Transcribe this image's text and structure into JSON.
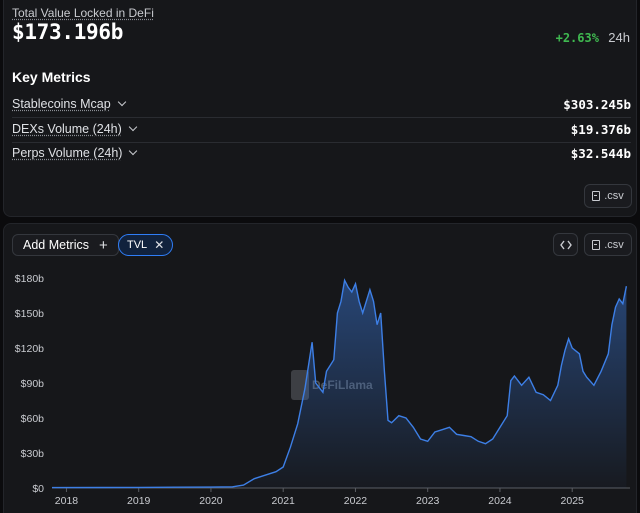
{
  "summary": {
    "tvl_label": "Total Value Locked in DeFi",
    "tvl_value": "$173.196b",
    "change_pct": "+2.63%",
    "change_period": "24h"
  },
  "key_metrics": {
    "title": "Key Metrics",
    "items": [
      {
        "name": "Stablecoins Mcap",
        "value": "$303.245b"
      },
      {
        "name": "DEXs Volume (24h)",
        "value": "$19.376b"
      },
      {
        "name": "Perps Volume (24h)",
        "value": "$32.544b"
      }
    ],
    "csv_label": ".csv"
  },
  "chart_controls": {
    "add_metrics_label": "Add Metrics",
    "add_icon": "plus-icon",
    "chip_label": "TVL",
    "chip_remove_icon": "close-icon",
    "embed_icon": "code-icon",
    "csv_label": ".csv"
  },
  "watermark": "DeFiLlama",
  "colors": {
    "accent": "#2f7df6",
    "positive": "#3fb950",
    "line": "#3d7fe6"
  },
  "chart_data": {
    "type": "area",
    "title": "",
    "xlabel": "",
    "ylabel": "",
    "x_ticks": [
      "2018",
      "2019",
      "2020",
      "2021",
      "2022",
      "2023",
      "2024",
      "2025"
    ],
    "y_ticks": [
      "$0",
      "$30b",
      "$60b",
      "$90b",
      "$120b",
      "$150b",
      "$180b"
    ],
    "ylim": [
      0,
      180
    ],
    "xlim": [
      2017.8,
      2025.8
    ],
    "grid": false,
    "series": [
      {
        "name": "TVL",
        "points": [
          [
            2017.8,
            0.3
          ],
          [
            2018.5,
            0.4
          ],
          [
            2019.0,
            0.5
          ],
          [
            2019.5,
            0.7
          ],
          [
            2020.0,
            0.8
          ],
          [
            2020.3,
            1.0
          ],
          [
            2020.45,
            2.5
          ],
          [
            2020.6,
            8
          ],
          [
            2020.75,
            11
          ],
          [
            2020.9,
            14
          ],
          [
            2021.0,
            18
          ],
          [
            2021.1,
            35
          ],
          [
            2021.2,
            55
          ],
          [
            2021.3,
            85
          ],
          [
            2021.35,
            105
          ],
          [
            2021.4,
            125
          ],
          [
            2021.45,
            90
          ],
          [
            2021.55,
            82
          ],
          [
            2021.6,
            100
          ],
          [
            2021.7,
            110
          ],
          [
            2021.75,
            150
          ],
          [
            2021.8,
            160
          ],
          [
            2021.85,
            178
          ],
          [
            2021.9,
            172
          ],
          [
            2021.95,
            168
          ],
          [
            2022.0,
            175
          ],
          [
            2022.05,
            160
          ],
          [
            2022.1,
            150
          ],
          [
            2022.2,
            170
          ],
          [
            2022.25,
            160
          ],
          [
            2022.3,
            140
          ],
          [
            2022.35,
            150
          ],
          [
            2022.4,
            100
          ],
          [
            2022.45,
            58
          ],
          [
            2022.5,
            56
          ],
          [
            2022.6,
            62
          ],
          [
            2022.7,
            60
          ],
          [
            2022.8,
            52
          ],
          [
            2022.9,
            42
          ],
          [
            2023.0,
            40
          ],
          [
            2023.1,
            48
          ],
          [
            2023.2,
            50
          ],
          [
            2023.3,
            52
          ],
          [
            2023.4,
            46
          ],
          [
            2023.5,
            45
          ],
          [
            2023.6,
            44
          ],
          [
            2023.7,
            40
          ],
          [
            2023.8,
            38
          ],
          [
            2023.9,
            42
          ],
          [
            2024.0,
            52
          ],
          [
            2024.1,
            62
          ],
          [
            2024.15,
            92
          ],
          [
            2024.2,
            96
          ],
          [
            2024.3,
            88
          ],
          [
            2024.4,
            95
          ],
          [
            2024.5,
            82
          ],
          [
            2024.6,
            80
          ],
          [
            2024.7,
            75
          ],
          [
            2024.8,
            88
          ],
          [
            2024.85,
            105
          ],
          [
            2024.9,
            118
          ],
          [
            2024.95,
            128
          ],
          [
            2025.0,
            120
          ],
          [
            2025.1,
            115
          ],
          [
            2025.15,
            100
          ],
          [
            2025.2,
            95
          ],
          [
            2025.3,
            88
          ],
          [
            2025.4,
            100
          ],
          [
            2025.5,
            115
          ],
          [
            2025.55,
            140
          ],
          [
            2025.6,
            155
          ],
          [
            2025.65,
            162
          ],
          [
            2025.7,
            158
          ],
          [
            2025.75,
            173
          ]
        ]
      }
    ]
  }
}
